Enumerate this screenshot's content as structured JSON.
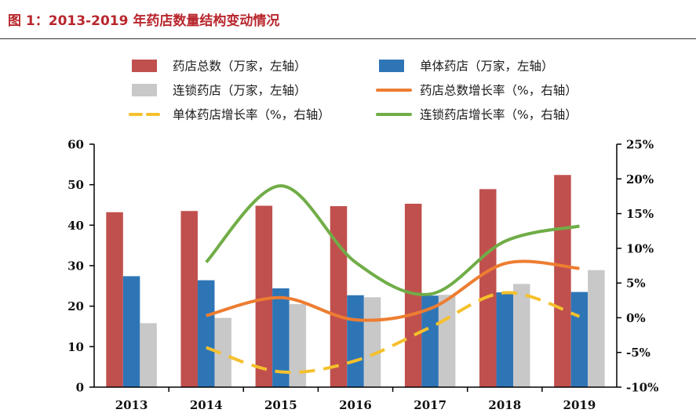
{
  "figure": {
    "title": "图 1：2013-2019 年药店数量结构变动情况"
  },
  "colors": {
    "total_bar": "#c0504d",
    "single_bar": "#2e75b6",
    "chain_bar": "#c8c8c8",
    "total_growth": "#ed7d31",
    "single_growth": "#f5c02c",
    "chain_growth": "#70ad47",
    "title": "#b8272d",
    "axis": "#000000"
  },
  "legend": [
    {
      "label": "药店总数（万家，左轴）",
      "kind": "bar",
      "color": "#c0504d"
    },
    {
      "label": "单体药店（万家，左轴）",
      "kind": "bar",
      "color": "#2e75b6"
    },
    {
      "label": "连锁药店（万家，左轴）",
      "kind": "bar",
      "color": "#c8c8c8"
    },
    {
      "label": "药店总数增长率（%，右轴）",
      "kind": "line",
      "color": "#ed7d31"
    },
    {
      "label": "单体药店增长率（%，右轴）",
      "kind": "dash",
      "color": "#f5c02c"
    },
    {
      "label": "连锁药店增长率（%，右轴）",
      "kind": "line",
      "color": "#70ad47"
    }
  ],
  "chart_data": {
    "type": "bar",
    "categories": [
      "2013",
      "2014",
      "2015",
      "2016",
      "2017",
      "2018",
      "2019"
    ],
    "series": [
      {
        "name": "药店总数（万家，左轴）",
        "type": "bar",
        "axis": "left",
        "values": [
          43.2,
          43.5,
          44.8,
          44.7,
          45.3,
          48.9,
          52.4
        ]
      },
      {
        "name": "单体药店（万家，左轴）",
        "type": "bar",
        "axis": "left",
        "values": [
          27.4,
          26.4,
          24.4,
          22.7,
          22.6,
          23.4,
          23.5
        ]
      },
      {
        "name": "连锁药店（万家，左轴）",
        "type": "bar",
        "axis": "left",
        "values": [
          15.8,
          17.1,
          20.5,
          22.2,
          22.8,
          25.5,
          28.9
        ]
      },
      {
        "name": "药店总数增长率（%，右轴）",
        "type": "line",
        "axis": "right",
        "values": [
          null,
          0.3,
          2.9,
          -0.3,
          1.3,
          7.8,
          7.1
        ]
      },
      {
        "name": "单体药店增长率（%，右轴）",
        "type": "line-dashed",
        "axis": "right",
        "values": [
          null,
          -4.3,
          -7.8,
          -6.2,
          -1.4,
          3.6,
          0.2
        ]
      },
      {
        "name": "连锁药店增长率（%，右轴）",
        "type": "line",
        "axis": "right",
        "values": [
          null,
          8.0,
          19.0,
          8.0,
          3.4,
          11.0,
          13.2
        ]
      }
    ],
    "y_left": {
      "min": 0,
      "max": 60,
      "step": 10,
      "ticks": [
        "0",
        "10",
        "20",
        "30",
        "40",
        "50",
        "60"
      ]
    },
    "y_right": {
      "min": -10,
      "max": 25,
      "step": 5,
      "ticks": [
        "-10%",
        "-5%",
        "0%",
        "5%",
        "10%",
        "15%",
        "20%",
        "25%"
      ]
    },
    "legend_position": "top",
    "grid": false
  }
}
